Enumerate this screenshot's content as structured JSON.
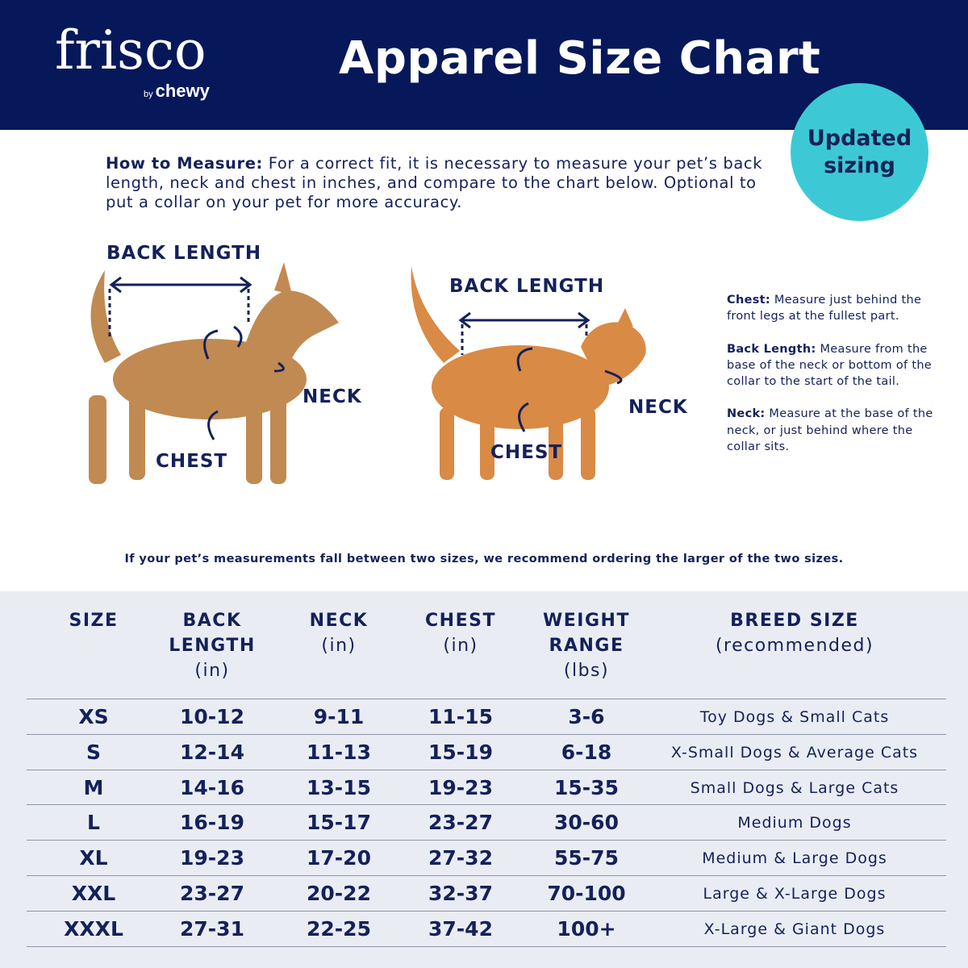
{
  "brand": {
    "logo": "frisco",
    "by": "by",
    "parent": "chewy"
  },
  "header": {
    "title": "Apparel Size Chart"
  },
  "badge": {
    "line1": "Updated",
    "line2": "sizing"
  },
  "how_to": {
    "lead": "How to Measure:",
    "text": " For a correct fit, it is necessary to measure your pet’s back length, neck and chest in inches, and compare to the chart below. Optional to put a collar on your pet for more accuracy."
  },
  "dog_labels": {
    "back": "BACK LENGTH",
    "neck": "NECK",
    "chest": "CHEST"
  },
  "cat_labels": {
    "back": "BACK LENGTH",
    "neck": "NECK",
    "chest": "CHEST"
  },
  "notes": [
    {
      "term": "Chest:",
      "text": " Measure just behind the front legs at the fullest part."
    },
    {
      "term": "Back Length:",
      "text": " Measure from the base of the neck or bottom of the collar to the start of the tail."
    },
    {
      "term": "Neck:",
      "text": " Measure at the base of the neck, or just behind where the collar sits."
    }
  ],
  "tip": "If your pet’s measurements fall between two sizes, we recommend ordering the larger of the two sizes.",
  "colors": {
    "navy": "#06185a",
    "text": "#14215a",
    "badge": "#3cc9d5",
    "table_bg": "#e9edf3"
  },
  "table": {
    "headers": [
      {
        "bold": "SIZE",
        "unit": ""
      },
      {
        "bold": "BACK LENGTH",
        "unit": "(in)"
      },
      {
        "bold": "NECK",
        "unit": "(in)"
      },
      {
        "bold": "CHEST",
        "unit": "(in)"
      },
      {
        "bold": "WEIGHT RANGE",
        "unit": "(lbs)"
      },
      {
        "bold": "BREED SIZE",
        "unit": "(recommended)"
      }
    ],
    "rows": [
      [
        "XS",
        "10-12",
        "9-11",
        "11-15",
        "3-6",
        "Toy Dogs & Small Cats"
      ],
      [
        "S",
        "12-14",
        "11-13",
        "15-19",
        "6-18",
        "X-Small Dogs & Average Cats"
      ],
      [
        "M",
        "14-16",
        "13-15",
        "19-23",
        "15-35",
        "Small Dogs & Large Cats"
      ],
      [
        "L",
        "16-19",
        "15-17",
        "23-27",
        "30-60",
        "Medium Dogs"
      ],
      [
        "XL",
        "19-23",
        "17-20",
        "27-32",
        "55-75",
        "Medium & Large Dogs"
      ],
      [
        "XXL",
        "23-27",
        "20-22",
        "32-37",
        "70-100",
        "Large & X-Large Dogs"
      ],
      [
        "XXXL",
        "27-31",
        "22-25",
        "37-42",
        "100+",
        "X-Large & Giant Dogs"
      ]
    ]
  }
}
